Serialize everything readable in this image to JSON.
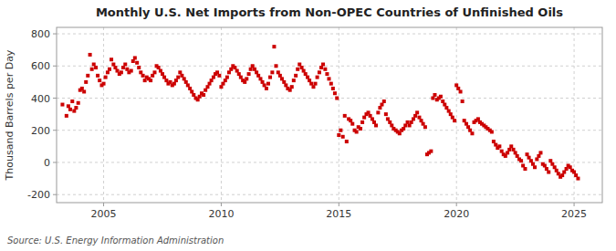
{
  "chart_data": {
    "type": "scatter",
    "title": "Monthly U.S. Net Imports from Non-OPEC Countries of Unfinished Oils",
    "ylabel": "Thousand Barrels per Day",
    "annotations": [
      "Source: U.S. Energy Information Administration"
    ],
    "color": "#CC0000",
    "marker": "square",
    "grid": true,
    "xlim": [
      2003.0,
      2026.2
    ],
    "ylim": [
      -250,
      840
    ],
    "xticks": [
      2005,
      2010,
      2015,
      2020,
      2025
    ],
    "yticks": [
      -200,
      0,
      200,
      400,
      600,
      800
    ],
    "x": [
      2003.25,
      2003.42,
      2003.5,
      2003.58,
      2003.67,
      2003.75,
      2003.83,
      2003.92,
      2004.0,
      2004.08,
      2004.17,
      2004.25,
      2004.33,
      2004.42,
      2004.5,
      2004.58,
      2004.67,
      2004.75,
      2004.83,
      2004.92,
      2005.0,
      2005.08,
      2005.17,
      2005.25,
      2005.33,
      2005.42,
      2005.5,
      2005.58,
      2005.67,
      2005.75,
      2005.83,
      2005.92,
      2006.0,
      2006.08,
      2006.17,
      2006.25,
      2006.33,
      2006.42,
      2006.5,
      2006.58,
      2006.67,
      2006.75,
      2006.83,
      2006.92,
      2007.0,
      2007.08,
      2007.17,
      2007.25,
      2007.33,
      2007.42,
      2007.5,
      2007.58,
      2007.67,
      2007.75,
      2007.83,
      2007.92,
      2008.0,
      2008.08,
      2008.17,
      2008.25,
      2008.33,
      2008.42,
      2008.5,
      2008.58,
      2008.67,
      2008.75,
      2008.83,
      2008.92,
      2009.0,
      2009.08,
      2009.17,
      2009.25,
      2009.33,
      2009.42,
      2009.5,
      2009.58,
      2009.67,
      2009.75,
      2009.83,
      2009.92,
      2010.0,
      2010.08,
      2010.17,
      2010.25,
      2010.33,
      2010.42,
      2010.5,
      2010.58,
      2010.67,
      2010.75,
      2010.83,
      2010.92,
      2011.0,
      2011.08,
      2011.17,
      2011.25,
      2011.33,
      2011.42,
      2011.5,
      2011.58,
      2011.67,
      2011.75,
      2011.83,
      2011.92,
      2012.0,
      2012.08,
      2012.17,
      2012.25,
      2012.33,
      2012.42,
      2012.5,
      2012.58,
      2012.67,
      2012.75,
      2012.83,
      2012.92,
      2013.0,
      2013.08,
      2013.17,
      2013.25,
      2013.33,
      2013.42,
      2013.5,
      2013.58,
      2013.67,
      2013.75,
      2013.83,
      2013.92,
      2014.0,
      2014.08,
      2014.17,
      2014.25,
      2014.33,
      2014.42,
      2014.5,
      2014.58,
      2014.67,
      2014.75,
      2014.83,
      2014.92,
      2015.0,
      2015.08,
      2015.17,
      2015.25,
      2015.33,
      2015.42,
      2015.5,
      2015.58,
      2015.67,
      2015.75,
      2015.83,
      2015.92,
      2016.0,
      2016.08,
      2016.17,
      2016.25,
      2016.33,
      2016.42,
      2016.5,
      2016.58,
      2016.67,
      2016.75,
      2016.83,
      2016.92,
      2017.0,
      2017.08,
      2017.17,
      2017.25,
      2017.33,
      2017.42,
      2017.5,
      2017.58,
      2017.67,
      2017.75,
      2017.83,
      2017.92,
      2018.0,
      2018.08,
      2018.17,
      2018.25,
      2018.33,
      2018.42,
      2018.5,
      2018.58,
      2018.67,
      2018.75,
      2018.83,
      2018.92,
      2019.0,
      2019.08,
      2019.17,
      2019.25,
      2019.33,
      2019.42,
      2019.5,
      2019.58,
      2019.67,
      2019.75,
      2019.83,
      2019.92,
      2020.0,
      2020.08,
      2020.17,
      2020.25,
      2020.33,
      2020.42,
      2020.5,
      2020.58,
      2020.67,
      2020.75,
      2020.83,
      2020.92,
      2021.0,
      2021.08,
      2021.17,
      2021.25,
      2021.33,
      2021.42,
      2021.5,
      2021.58,
      2021.67,
      2021.75,
      2021.83,
      2021.92,
      2022.0,
      2022.08,
      2022.17,
      2022.25,
      2022.33,
      2022.42,
      2022.5,
      2022.58,
      2022.67,
      2022.75,
      2022.83,
      2022.92,
      2023.0,
      2023.08,
      2023.17,
      2023.25,
      2023.33,
      2023.42,
      2023.5,
      2023.58,
      2023.67,
      2023.75,
      2023.83,
      2023.92,
      2024.0,
      2024.08,
      2024.17,
      2024.25,
      2024.33,
      2024.42,
      2024.5,
      2024.58,
      2024.67,
      2024.75,
      2024.83,
      2024.92,
      2025.0,
      2025.08,
      2025.17
    ],
    "values": [
      360,
      290,
      350,
      330,
      380,
      320,
      340,
      370,
      450,
      460,
      440,
      500,
      540,
      670,
      580,
      610,
      590,
      540,
      510,
      480,
      490,
      530,
      560,
      580,
      640,
      610,
      590,
      570,
      550,
      560,
      590,
      610,
      580,
      560,
      570,
      630,
      650,
      620,
      590,
      560,
      540,
      510,
      530,
      520,
      510,
      540,
      560,
      600,
      590,
      570,
      550,
      530,
      510,
      490,
      500,
      480,
      490,
      510,
      530,
      560,
      540,
      520,
      500,
      480,
      460,
      440,
      420,
      400,
      390,
      410,
      430,
      420,
      450,
      470,
      490,
      510,
      530,
      550,
      560,
      540,
      470,
      490,
      510,
      530,
      560,
      580,
      600,
      590,
      570,
      550,
      530,
      510,
      500,
      520,
      550,
      580,
      600,
      580,
      560,
      540,
      520,
      500,
      480,
      460,
      490,
      530,
      560,
      720,
      600,
      560,
      540,
      520,
      500,
      480,
      460,
      450,
      470,
      510,
      540,
      580,
      610,
      590,
      570,
      550,
      530,
      510,
      490,
      470,
      490,
      530,
      560,
      590,
      610,
      580,
      550,
      520,
      490,
      460,
      430,
      400,
      170,
      200,
      160,
      290,
      130,
      270,
      260,
      240,
      200,
      190,
      220,
      210,
      250,
      280,
      300,
      310,
      290,
      270,
      250,
      230,
      310,
      340,
      360,
      380,
      300,
      270,
      250,
      230,
      210,
      200,
      190,
      180,
      200,
      210,
      230,
      250,
      230,
      250,
      270,
      290,
      310,
      280,
      260,
      240,
      220,
      50,
      60,
      70,
      400,
      420,
      390,
      400,
      410,
      380,
      360,
      340,
      320,
      300,
      280,
      260,
      480,
      460,
      440,
      380,
      260,
      240,
      220,
      200,
      180,
      250,
      260,
      270,
      250,
      240,
      230,
      220,
      210,
      200,
      190,
      130,
      110,
      90,
      100,
      70,
      50,
      40,
      60,
      80,
      100,
      80,
      60,
      40,
      20,
      10,
      -20,
      -40,
      50,
      30,
      10,
      -10,
      -30,
      20,
      40,
      60,
      -10,
      -20,
      -40,
      -60,
      10,
      -10,
      -30,
      -50,
      -70,
      -90,
      -80,
      -60,
      -40,
      -20,
      -30,
      -50,
      -60,
      -80,
      -100
    ]
  }
}
